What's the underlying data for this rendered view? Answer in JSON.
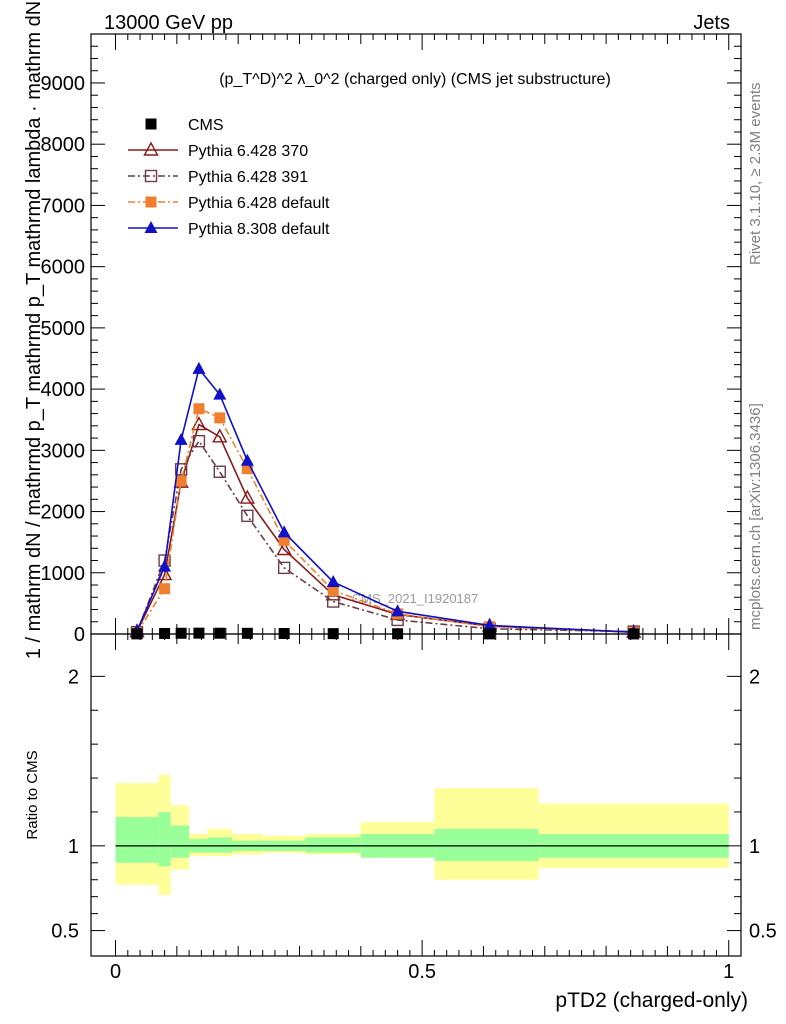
{
  "header": {
    "energy_label": "13000 GeV pp",
    "process_label": "Jets"
  },
  "side_labels": {
    "rivet": "Rivet 3.1.10, ≥ 2.3M events",
    "mcplots": "mcplots.cern.ch [arXiv:1306.3436]"
  },
  "chart_data": [
    {
      "type": "line",
      "panel": "main",
      "title": "(p_T^D)^2 λ_0^2 (charged only) (CMS jet substructure)",
      "ylabel": "1 / mathrm dN / mathrmd p_T mathrmd p_T mathrmd lambda · mathrm dN",
      "watermark": "CMS_2021_I1920187",
      "xlim": [
        -0.04,
        1.02
      ],
      "ylim": [
        0,
        9800
      ],
      "yticks": [
        0,
        1000,
        2000,
        3000,
        4000,
        5000,
        6000,
        7000,
        8000,
        9000
      ],
      "ytick_labels": [
        "0",
        "1000",
        "2000",
        "3000",
        "4000",
        "5000",
        "6000",
        "7000",
        "8000",
        "9000"
      ],
      "x": [
        0.035,
        0.08,
        0.107,
        0.136,
        0.17,
        0.215,
        0.275,
        0.355,
        0.46,
        0.61,
        0.845
      ],
      "series": [
        {
          "name": "CMS",
          "color": "#000000",
          "marker": "filled-square",
          "line": "none",
          "values": [
            2,
            9,
            12,
            14,
            13,
            11,
            8,
            6,
            4,
            2,
            1
          ]
        },
        {
          "name": "Pythia 6.428 370",
          "color": "#8b1a1a",
          "marker": "open-triangle",
          "line": "solid",
          "values": [
            40,
            970,
            2480,
            3420,
            3220,
            2220,
            1380,
            640,
            320,
            130,
            30
          ]
        },
        {
          "name": "Pythia 6.428 391",
          "color": "#6a3d4a",
          "marker": "open-square",
          "line": "dashdot",
          "values": [
            30,
            1200,
            2690,
            3150,
            2650,
            1930,
            1080,
            530,
            230,
            85,
            40
          ]
        },
        {
          "name": "Pythia 6.428 default",
          "color": "#f08030",
          "marker": "filled-square",
          "line": "dashdot",
          "values": [
            20,
            740,
            2500,
            3680,
            3530,
            2700,
            1530,
            710,
            330,
            120,
            30
          ]
        },
        {
          "name": "Pythia 8.308 default",
          "color": "#1010c8",
          "marker": "filled-triangle",
          "line": "solid",
          "values": [
            50,
            1100,
            3170,
            4330,
            3910,
            2830,
            1660,
            850,
            370,
            140,
            30
          ]
        }
      ],
      "legend": "top-left"
    },
    {
      "type": "area",
      "panel": "ratio",
      "xlabel": "pTD2 (charged-only)",
      "ylabel": "Ratio to CMS",
      "xlim": [
        -0.04,
        1.02
      ],
      "ylim": [
        0.35,
        2.25
      ],
      "yticks": [
        0.5,
        1,
        2
      ],
      "ytick_labels": [
        "0.5",
        "1",
        "2"
      ],
      "xticks": [
        0,
        0.5,
        1
      ],
      "xtick_labels": [
        "0",
        "0.5",
        "1"
      ],
      "reference": 1,
      "bin_edges": [
        0.0,
        0.07,
        0.09,
        0.12,
        0.15,
        0.19,
        0.24,
        0.31,
        0.4,
        0.52,
        0.69,
        1.0
      ],
      "band_inner": [
        [
          0.9,
          1.17
        ],
        [
          0.88,
          1.2
        ],
        [
          0.93,
          1.12
        ],
        [
          0.96,
          1.04
        ],
        [
          0.96,
          1.05
        ],
        [
          0.97,
          1.03
        ],
        [
          0.97,
          1.03
        ],
        [
          0.96,
          1.05
        ],
        [
          0.93,
          1.07
        ],
        [
          0.91,
          1.1
        ],
        [
          0.93,
          1.07
        ]
      ],
      "band_outer": [
        [
          0.77,
          1.37
        ],
        [
          0.71,
          1.42
        ],
        [
          0.86,
          1.24
        ],
        [
          0.94,
          1.07
        ],
        [
          0.94,
          1.1
        ],
        [
          0.95,
          1.07
        ],
        [
          0.96,
          1.06
        ],
        [
          0.95,
          1.07
        ],
        [
          0.93,
          1.14
        ],
        [
          0.8,
          1.34
        ],
        [
          0.87,
          1.25
        ]
      ],
      "inner_color": "#99ff99",
      "outer_color": "#ffff99"
    }
  ]
}
